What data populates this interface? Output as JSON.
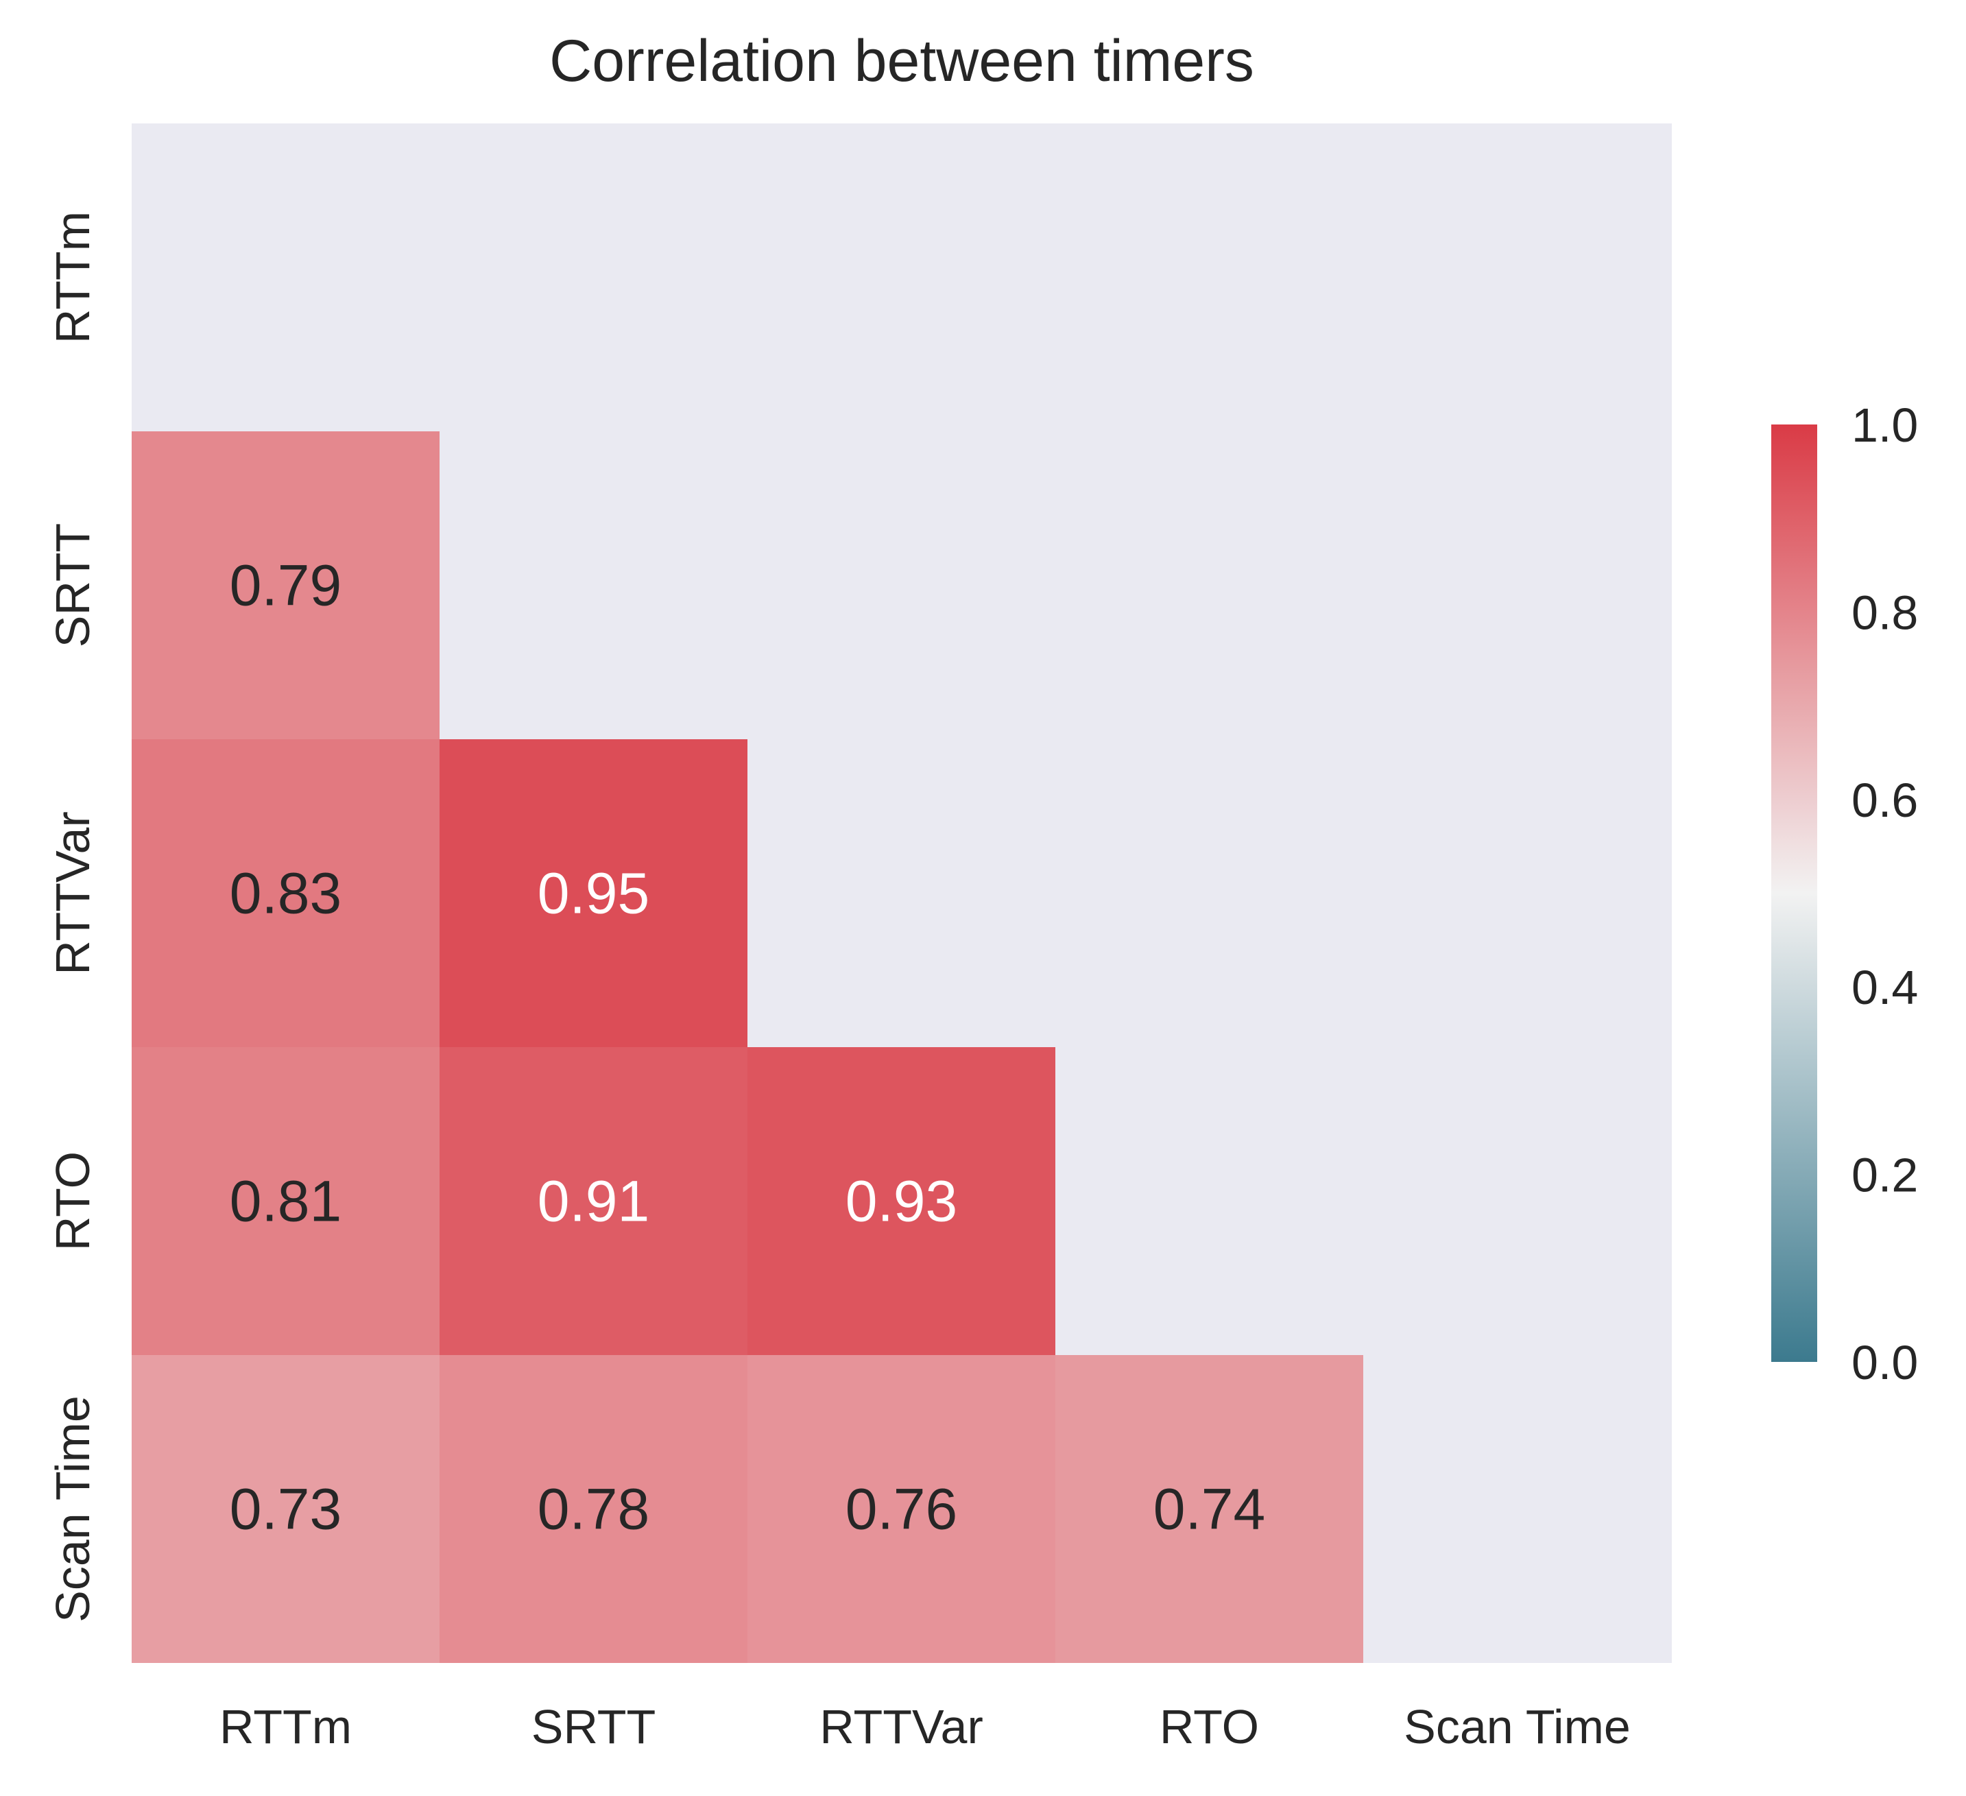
{
  "chart_data": {
    "type": "heatmap",
    "title": "Correlation between timers",
    "xlabel": "",
    "ylabel": "",
    "rows": [
      "RTTm",
      "SRTT",
      "RTTVar",
      "RTO",
      "Scan Time"
    ],
    "columns": [
      "RTTm",
      "SRTT",
      "RTTVar",
      "RTO",
      "Scan Time"
    ],
    "mask": "upper triangle including diagonal",
    "cells": [
      {
        "row": "SRTT",
        "col": "RTTm",
        "value": 0.79,
        "label": "0.79"
      },
      {
        "row": "RTTVar",
        "col": "RTTm",
        "value": 0.83,
        "label": "0.83"
      },
      {
        "row": "RTTVar",
        "col": "SRTT",
        "value": 0.95,
        "label": "0.95"
      },
      {
        "row": "RTO",
        "col": "RTTm",
        "value": 0.81,
        "label": "0.81"
      },
      {
        "row": "RTO",
        "col": "SRTT",
        "value": 0.91,
        "label": "0.91"
      },
      {
        "row": "RTO",
        "col": "RTTVar",
        "value": 0.93,
        "label": "0.93"
      },
      {
        "row": "Scan Time",
        "col": "RTTm",
        "value": 0.73,
        "label": "0.73"
      },
      {
        "row": "Scan Time",
        "col": "SRTT",
        "value": 0.78,
        "label": "0.78"
      },
      {
        "row": "Scan Time",
        "col": "RTTVar",
        "value": 0.76,
        "label": "0.76"
      },
      {
        "row": "Scan Time",
        "col": "RTO",
        "value": 0.74,
        "label": "0.74"
      }
    ],
    "colorbar": {
      "range": [
        0.0,
        1.0
      ],
      "ticks": [
        "0.0",
        "0.2",
        "0.4",
        "0.6",
        "0.8",
        "1.0"
      ],
      "colormap": "diverging",
      "low_color": "#3c7a8e",
      "mid_color": "#f2f2f2",
      "high_color": "#da3b46"
    },
    "grid": false,
    "background_color": "#eaeaf2",
    "legend": "colorbar right"
  }
}
